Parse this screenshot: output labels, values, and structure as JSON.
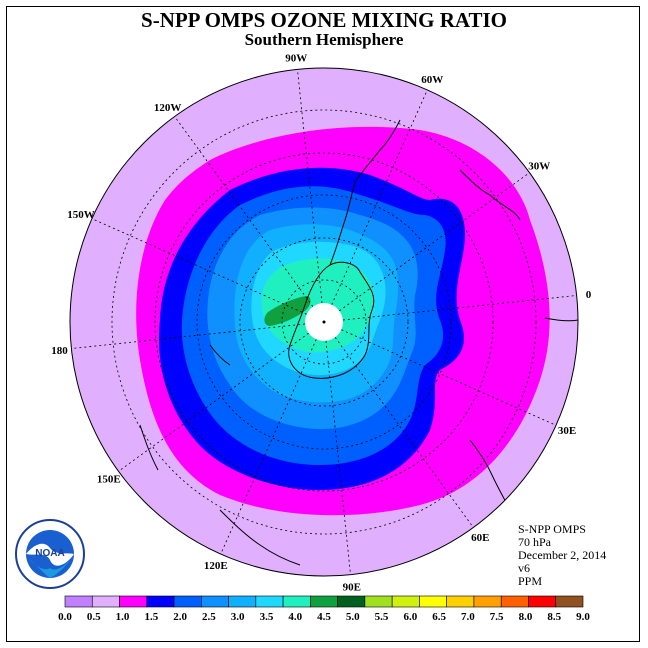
{
  "title": "S-NPP OMPS OZONE MIXING RATIO",
  "subtitle": "Southern Hemisphere",
  "longitude_labels": [
    "90W",
    "60W",
    "30W",
    "0",
    "30E",
    "60E",
    "90E",
    "120E",
    "150E",
    "180",
    "150W",
    "120W"
  ],
  "info": {
    "instrument": "S-NPP OMPS",
    "pressure": "70 hPa",
    "date": "December 2, 2014",
    "version": "v6",
    "units": "PPM"
  },
  "logo_text": "NOAA",
  "colorbar": {
    "ticks": [
      "0.0",
      "0.5",
      "1.0",
      "1.5",
      "2.0",
      "2.5",
      "3.0",
      "3.5",
      "4.0",
      "4.5",
      "5.0",
      "5.5",
      "6.0",
      "6.5",
      "7.0",
      "7.5",
      "8.0",
      "8.5",
      "9.0"
    ],
    "colors": [
      "#c080ff",
      "#e0b0ff",
      "#ff00ff",
      "#0000ff",
      "#0060ff",
      "#1090ff",
      "#10b0ff",
      "#20d8ff",
      "#20f0c0",
      "#10a040",
      "#006020",
      "#a0e020",
      "#d0f010",
      "#ffff00",
      "#ffd000",
      "#ffa000",
      "#ff6000",
      "#ff0000",
      "#905020"
    ]
  },
  "levels_colors": {
    "outer": "#e0b0ff",
    "level_1_0": "#ff00ff",
    "level_1_5": "#0000ff",
    "level_2_0": "#0060ff",
    "level_2_5": "#1090ff",
    "level_3_0": "#10b0ff",
    "level_3_5": "#20d8ff",
    "level_4_0": "#20f0c0",
    "level_4_5": "#10a040"
  }
}
